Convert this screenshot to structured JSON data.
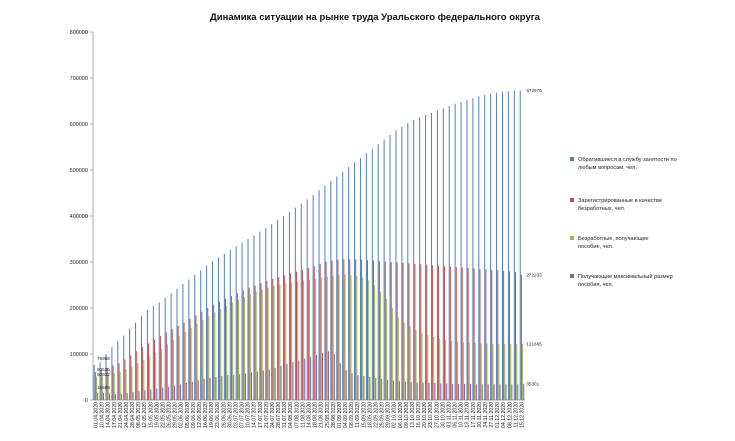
{
  "chart_data": {
    "type": "bar",
    "title": "Динамика ситуации на рынке труда Уральского федерального округа",
    "xlabel": "",
    "ylabel": "",
    "ylim": [
      0,
      800000
    ],
    "yticks": [
      "0",
      "100000",
      "200000",
      "300000",
      "400000",
      "500000",
      "600000",
      "700000",
      "800000"
    ],
    "grid": false,
    "legend_position": "right",
    "colors": [
      "#4f81bd",
      "#c0504d",
      "#9bbb59",
      "#8064a2"
    ],
    "categories": [
      "01.04.2020",
      "07.04.2020",
      "10.04.2020",
      "14.04.2020",
      "17.04.2020",
      "21.04.2020",
      "24.04.2020",
      "28.04.2020",
      "01.05.2020",
      "08.05.2020",
      "12.05.2020",
      "15.05.2020",
      "19.05.2020",
      "22.05.2020",
      "26.05.2020",
      "29.05.2020",
      "02.06.2020",
      "05.06.2020",
      "09.06.2020",
      "12.06.2020",
      "16.06.2020",
      "19.06.2020",
      "23.06.2020",
      "26.06.2020",
      "30.06.2020",
      "03.07.2020",
      "07.07.2020",
      "10.07.2020",
      "14.07.2020",
      "17.07.2020",
      "21.07.2020",
      "24.07.2020",
      "28.07.2020",
      "31.07.2020",
      "04.08.2020",
      "07.08.2020",
      "11.08.2020",
      "14.08.2020",
      "18.08.2020",
      "21.08.2020",
      "25.08.2020",
      "28.08.2020",
      "01.09.2020",
      "04.09.2020",
      "08.09.2020",
      "11.09.2020",
      "15.09.2020",
      "18.09.2020",
      "22.09.2020",
      "25.09.2020",
      "29.09.2020",
      "02.10.2020",
      "06.10.2020",
      "09.10.2020",
      "13.10.2020",
      "16.10.2020",
      "20.10.2020",
      "23.10.2020",
      "27.10.2020",
      "30.10.2020",
      "03.11.2020",
      "06.11.2020",
      "10.11.2020",
      "13.11.2020",
      "17.11.2020",
      "20.11.2020",
      "24.11.2020",
      "27.11.2020",
      "01.12.2020",
      "04.12.2020",
      "08.12.2020",
      "11.12.2020",
      "15.12.2020"
    ],
    "x_tick_labels": [
      "01.04.2020",
      "10.04.2020",
      "14.04.2020",
      "17.04.2020",
      "21.04.2020",
      "24.04.2020",
      "28.04.2020",
      "08.05.2020",
      "12.05.2020",
      "15.05.2020",
      "19.05.2020",
      "22.05.2020",
      "26.05.2020",
      "29.05.2020",
      "02.06.2020",
      "05.06.2020",
      "09.06.2020",
      "12.06.2020",
      "16.06.2020",
      "19.06.2020",
      "23.06.2020",
      "26.06.2020",
      "30.06.2020",
      "03.07.2020",
      "07.07.2020",
      "10.07.2020",
      "14.07.2020",
      "17.07.2020",
      "21.07.2020",
      "24.07.2020",
      "28.07.2020",
      "31.07.2020",
      "04.08.2020",
      "07.08.2020",
      "11.08.2020",
      "14.08.2020",
      "18.08.2020",
      "21.08.2020",
      "25.08.2020",
      "28.08.2020",
      "01.09.2020",
      "04.09.2020",
      "08.09.2020",
      "11.09.2020",
      "15.09.2020",
      "18.09.2020",
      "22.09.2020",
      "25.09.2020",
      "29.09.2020",
      "02.10.2020",
      "06.10.2020",
      "09.10.2020",
      "13.10.2020",
      "16.10.2020",
      "20.10.2020",
      "23.10.2020",
      "27.10.2020",
      "30.10.2020",
      "03.11.2020",
      "06.11.2020",
      "10.11.2020",
      "13.11.2020",
      "17.11.2020",
      "20.11.2020",
      "24.11.2020",
      "27.11.2020",
      "01.12.2020",
      "04.12.2020",
      "08.12.2020",
      "11.12.2020",
      "15.12.2020"
    ],
    "series": [
      {
        "name": "Обратившиеся в службу занятости по любым вопросам, чел.",
        "color": "#4f81bd",
        "values": [
          76958,
          82000,
          100000,
          115000,
          128000,
          140000,
          155000,
          168000,
          182000,
          196000,
          205000,
          212000,
          222000,
          232000,
          242000,
          252000,
          262000,
          272000,
          282000,
          292000,
          302000,
          310000,
          318000,
          326000,
          334000,
          342000,
          350000,
          358000,
          366000,
          374000,
          382000,
          391000,
          400000,
          409000,
          418000,
          427000,
          436000,
          446000,
          456000,
          466000,
          476000,
          486000,
          496000,
          506000,
          516000,
          526000,
          536000,
          546000,
          556000,
          566000,
          576000,
          586000,
          594000,
          602000,
          609000,
          614000,
          619000,
          624000,
          629000,
          634000,
          639000,
          644000,
          648000,
          652000,
          656000,
          660000,
          663000,
          666000,
          668000,
          670000,
          671000,
          672000,
          672970
        ]
      },
      {
        "name": "Зарегистрированные в качестве безработных, чел.",
        "color": "#c0504d",
        "values": [
          60526,
          66000,
          70000,
          75000,
          80000,
          88000,
          97000,
          106000,
          115000,
          123000,
          131000,
          139000,
          147000,
          154000,
          161000,
          168000,
          176000,
          184000,
          192000,
          200000,
          207000,
          214000,
          220000,
          226000,
          232000,
          238000,
          244000,
          249000,
          254000,
          259000,
          263000,
          267000,
          271000,
          275000,
          279000,
          283000,
          287000,
          291000,
          296000,
          301000,
          303000,
          305000,
          306000,
          306000,
          306000,
          305000,
          304000,
          303000,
          302000,
          301000,
          300000,
          299000,
          298000,
          297000,
          296000,
          295000,
          294000,
          293000,
          292000,
          291000,
          290000,
          289000,
          288000,
          287000,
          286000,
          285000,
          284000,
          283000,
          282000,
          281000,
          280000,
          278000,
          272233
        ]
      },
      {
        "name": "Безработные, получающие пособие, чел.",
        "color": "#9bbb59",
        "values": [
          50932,
          53000,
          55000,
          58000,
          62000,
          67000,
          73000,
          80000,
          87000,
          95000,
          103000,
          112000,
          121000,
          130000,
          139000,
          148000,
          157000,
          166000,
          174000,
          182000,
          190000,
          198000,
          205000,
          212000,
          218000,
          224000,
          230000,
          235000,
          240000,
          244000,
          248000,
          251000,
          254000,
          256000,
          258000,
          260000,
          262000,
          264000,
          266000,
          268000,
          270000,
          272000,
          273000,
          272000,
          270000,
          266000,
          260000,
          250000,
          236000,
          220000,
          200000,
          180000,
          168000,
          160000,
          152000,
          146000,
          141000,
          137000,
          134000,
          131000,
          129000,
          127000,
          126000,
          125000,
          124000,
          123000,
          123000,
          122000,
          122000,
          122000,
          122000,
          122000,
          121665
        ]
      },
      {
        "name": "Получающие максимальный размер пособия, чел.",
        "color": "#8064a2",
        "values": [
          15588,
          15000,
          14000,
          13000,
          14000,
          15000,
          17000,
          19000,
          21000,
          23000,
          25000,
          27000,
          29000,
          31000,
          34000,
          37000,
          40000,
          43000,
          46000,
          48000,
          50000,
          52000,
          54000,
          55000,
          56000,
          58000,
          60000,
          62000,
          64000,
          66000,
          70000,
          74000,
          78000,
          82000,
          86000,
          90000,
          94000,
          98000,
          102000,
          106000,
          100000,
          80000,
          65000,
          58000,
          54000,
          52000,
          50000,
          48000,
          46000,
          44000,
          42000,
          41000,
          40000,
          39000,
          38000,
          38000,
          37000,
          37000,
          36000,
          36000,
          35000,
          35000,
          35000,
          35000,
          34000,
          34000,
          34000,
          34000,
          34000,
          34000,
          34000,
          34000,
          35301
        ]
      }
    ],
    "data_labels": {
      "first": [
        "76958",
        "60526",
        "50932",
        "15588"
      ],
      "last": [
        "672970",
        "272233",
        "121665",
        "35301"
      ]
    }
  }
}
